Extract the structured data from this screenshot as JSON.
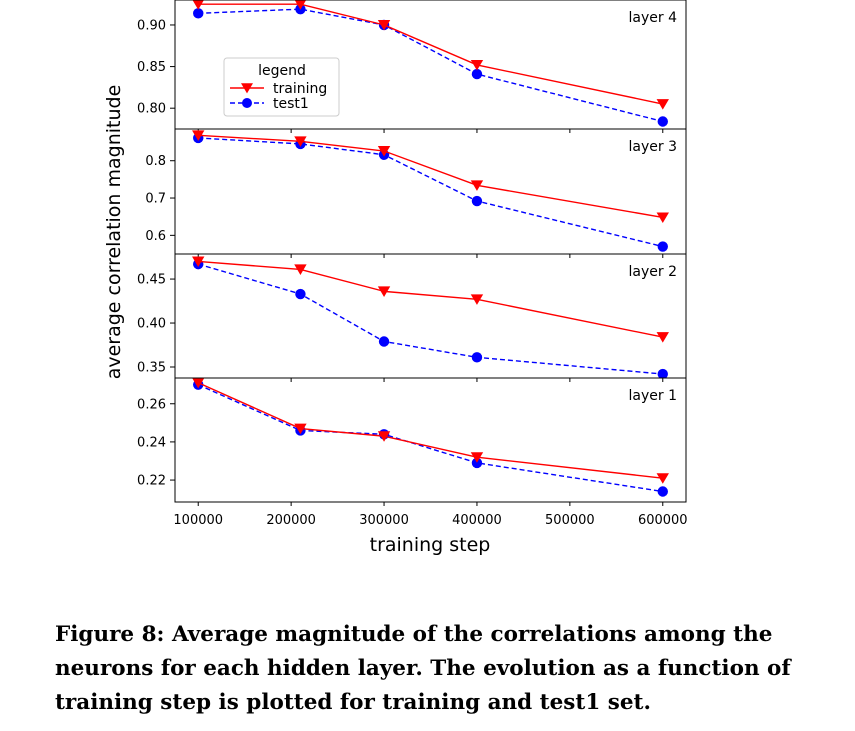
{
  "chart_data": {
    "type": "line",
    "xlabel": "training step",
    "ylabel": "average correlation magnitude",
    "xlim": [
      75000,
      625000
    ],
    "x_ticks": [
      100000,
      200000,
      300000,
      400000,
      500000,
      600000
    ],
    "x_tick_labels": [
      "100000",
      "200000",
      "300000",
      "400000",
      "500000",
      "600000"
    ],
    "x": [
      100000,
      210000,
      300000,
      400000,
      600000
    ],
    "legend": {
      "title": "legend",
      "placement": "upper-left",
      "panel": "layer 4"
    },
    "series_styles": [
      {
        "name": "training",
        "color": "#ff0000",
        "marker": "triangle-down",
        "line": "solid"
      },
      {
        "name": "test1",
        "color": "#0000ff",
        "marker": "circle",
        "line": "dashed"
      }
    ],
    "panels": [
      {
        "label": "layer 4",
        "ylim": [
          0.775,
          0.93
        ],
        "y_ticks": [
          0.8,
          0.85,
          0.9
        ],
        "y_tick_labels": [
          "0.80",
          "0.85",
          "0.90"
        ],
        "series": [
          {
            "name": "training",
            "values": [
              0.925,
              0.925,
              0.9,
              0.852,
              0.805
            ]
          },
          {
            "name": "test1",
            "values": [
              0.914,
              0.919,
              0.9,
              0.841,
              0.784
            ]
          }
        ]
      },
      {
        "label": "layer 3",
        "ylim": [
          0.55,
          0.885
        ],
        "y_ticks": [
          0.6,
          0.7,
          0.8
        ],
        "y_tick_labels": [
          "0.6",
          "0.7",
          "0.8"
        ],
        "series": [
          {
            "name": "training",
            "values": [
              0.868,
              0.852,
              0.826,
              0.734,
              0.648
            ]
          },
          {
            "name": "test1",
            "values": [
              0.861,
              0.845,
              0.816,
              0.692,
              0.57
            ]
          }
        ]
      },
      {
        "label": "layer 2",
        "ylim": [
          0.3375,
          0.4785
        ],
        "y_ticks": [
          0.35,
          0.4,
          0.45
        ],
        "y_tick_labels": [
          "0.35",
          "0.40",
          "0.45"
        ],
        "series": [
          {
            "name": "training",
            "values": [
              0.47,
              0.461,
              0.436,
              0.427,
              0.384
            ]
          },
          {
            "name": "test1",
            "values": [
              0.467,
              0.433,
              0.379,
              0.361,
              0.342
            ]
          }
        ]
      },
      {
        "label": "layer 1",
        "ylim": [
          0.2085,
          0.2735
        ],
        "y_ticks": [
          0.22,
          0.24,
          0.26
        ],
        "y_tick_labels": [
          "0.22",
          "0.24",
          "0.26"
        ],
        "series": [
          {
            "name": "training",
            "values": [
              0.271,
              0.247,
              0.243,
              0.232,
              0.221
            ]
          },
          {
            "name": "test1",
            "values": [
              0.27,
              0.246,
              0.244,
              0.229,
              0.214
            ]
          }
        ]
      }
    ]
  },
  "caption": "Figure 8: Average magnitude of the correlations among the neurons for each hidden layer. The evolution as a function of training step is plotted for training and test1 set."
}
